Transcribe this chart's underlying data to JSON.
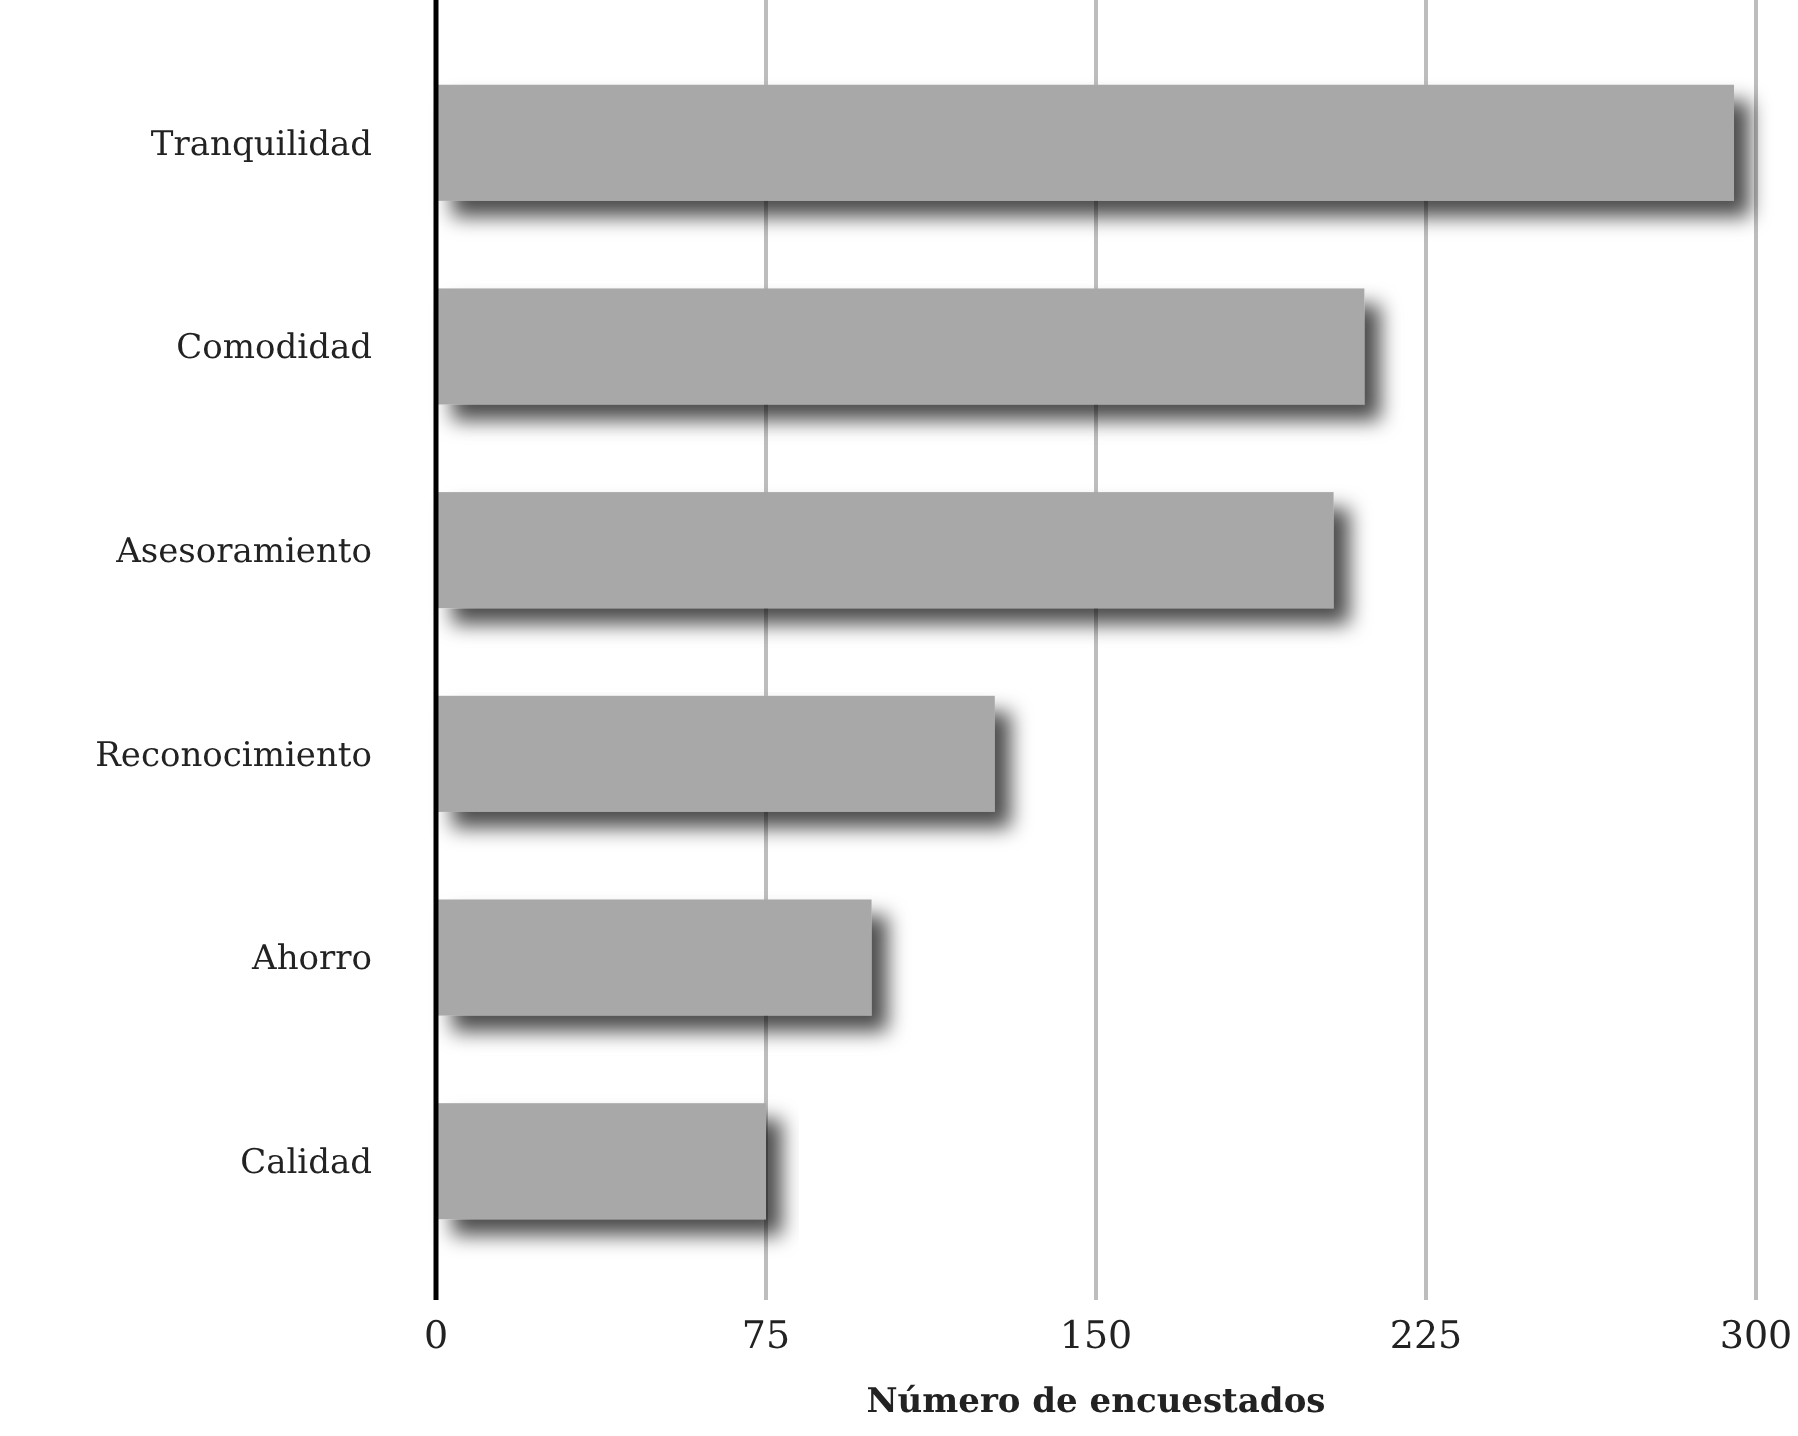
{
  "chart_data": {
    "type": "bar",
    "orientation": "horizontal",
    "xlabel": "Número de encuestados",
    "categories": [
      "Tranquilidad",
      "Comodidad",
      "Asesoramiento",
      "Reconocimiento",
      "Ahorro",
      "Calidad"
    ],
    "values": [
      295,
      211,
      204,
      127,
      99,
      75
    ],
    "color": "#a8a8a8",
    "xlim": [
      0,
      300
    ],
    "xticks": [
      0,
      75,
      150,
      225,
      300
    ],
    "grid": "x"
  }
}
